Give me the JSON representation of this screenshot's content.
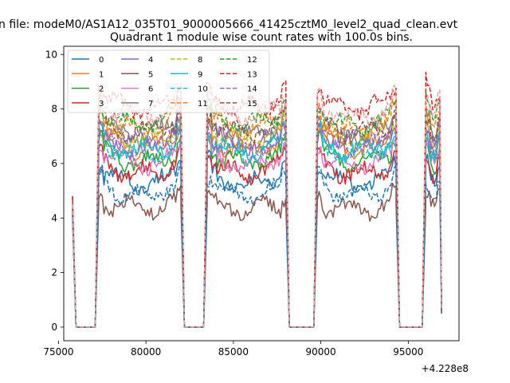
{
  "figure": {
    "suptitle": "n file: modeM0/AS1A12_035T01_9000005666_41425cztM0_level2_quad_clean.evt",
    "title": "Quadrant 1 module wise count rates with 100.0s bins.",
    "x_offset_label": "+4.228e8"
  },
  "chart_data": {
    "type": "line",
    "title": "Quadrant 1 module wise count rates with 100.0s bins.",
    "xlabel": "",
    "ylabel": "",
    "x_offset": 422800000,
    "xlim": [
      75300,
      97900
    ],
    "ylim": [
      -0.5,
      10.3
    ],
    "xticks": [
      75000,
      80000,
      85000,
      90000,
      95000
    ],
    "xtick_labels": [
      "75000",
      "80000",
      "85000",
      "90000",
      "95000"
    ],
    "yticks": [
      0,
      2,
      4,
      6,
      8,
      10
    ],
    "ytick_labels": [
      "0",
      "2",
      "4",
      "6",
      "8",
      "10"
    ],
    "bin_seconds": 100,
    "grid": false,
    "legend_location": "top-left",
    "legend_columns": 4,
    "segments": [
      {
        "start": 75800,
        "end": 76000,
        "kind": "drop"
      },
      {
        "start": 76000,
        "end": 77100,
        "kind": "zero"
      },
      {
        "start": 77100,
        "end": 77300,
        "kind": "rise"
      },
      {
        "start": 77300,
        "end": 82000,
        "kind": "plateau"
      },
      {
        "start": 82000,
        "end": 82200,
        "kind": "drop"
      },
      {
        "start": 82200,
        "end": 83300,
        "kind": "zero"
      },
      {
        "start": 83300,
        "end": 83500,
        "kind": "rise"
      },
      {
        "start": 83500,
        "end": 88000,
        "kind": "plateau"
      },
      {
        "start": 88000,
        "end": 88200,
        "kind": "drop"
      },
      {
        "start": 88200,
        "end": 89600,
        "kind": "zero"
      },
      {
        "start": 89600,
        "end": 89800,
        "kind": "rise"
      },
      {
        "start": 89800,
        "end": 94300,
        "kind": "plateau"
      },
      {
        "start": 94300,
        "end": 94500,
        "kind": "drop"
      },
      {
        "start": 94500,
        "end": 95800,
        "kind": "zero"
      },
      {
        "start": 95800,
        "end": 96000,
        "kind": "rise"
      },
      {
        "start": 96000,
        "end": 96900,
        "kind": "plateau"
      }
    ],
    "series": [
      {
        "name": "0",
        "color": "#1f77b4",
        "dash": "solid",
        "level": 5.7,
        "start_value": 4.2,
        "end_value": 0.6
      },
      {
        "name": "1",
        "color": "#ff7f0e",
        "dash": "solid",
        "level": 7.0,
        "start_value": 4.3,
        "end_value": 0.5
      },
      {
        "name": "2",
        "color": "#2ca02c",
        "dash": "solid",
        "level": 6.5,
        "start_value": 4.1,
        "end_value": 0.6
      },
      {
        "name": "3",
        "color": "#d62728",
        "dash": "solid",
        "level": 6.1,
        "start_value": 4.8,
        "end_value": 0.7
      },
      {
        "name": "4",
        "color": "#9467bd",
        "dash": "solid",
        "level": 7.2,
        "start_value": 4.4,
        "end_value": 0.6
      },
      {
        "name": "5",
        "color": "#8c564b",
        "dash": "solid",
        "level": 4.5,
        "start_value": 4.0,
        "end_value": 0.5
      },
      {
        "name": "6",
        "color": "#e377c2",
        "dash": "solid",
        "level": 6.4,
        "start_value": 4.2,
        "end_value": 0.6
      },
      {
        "name": "7",
        "color": "#7f7f7f",
        "dash": "solid",
        "level": 7.5,
        "start_value": 4.3,
        "end_value": 0.8
      },
      {
        "name": "8",
        "color": "#bcbd22",
        "dash": "dashed",
        "level": 7.3,
        "start_value": 4.2,
        "end_value": 0.6
      },
      {
        "name": "9",
        "color": "#17becf",
        "dash": "solid",
        "level": 6.9,
        "start_value": 4.1,
        "end_value": 0.7
      },
      {
        "name": "10",
        "color": "#17becf",
        "dash": "dashed",
        "level": 6.8,
        "start_value": 4.2,
        "end_value": 0.6
      },
      {
        "name": "11",
        "color": "#ff7f0e",
        "dash": "dashed",
        "level": 7.7,
        "start_value": 4.3,
        "end_value": 0.5
      },
      {
        "name": "12",
        "color": "#2ca02c",
        "dash": "dashed",
        "level": 7.9,
        "start_value": 4.4,
        "end_value": 0.6
      },
      {
        "name": "13",
        "color": "#d62728",
        "dash": "dashed",
        "level": 8.5,
        "start_value": 4.8,
        "end_value": 0.7
      },
      {
        "name": "14",
        "color": "#9467bd",
        "dash": "dashed",
        "level": 7.0,
        "start_value": 4.2,
        "end_value": 0.6
      },
      {
        "name": "15",
        "color": "#8c564b",
        "dash": "dashed",
        "level": 7.6,
        "start_value": 4.3,
        "end_value": 0.5
      },
      {
        "name": "",
        "color": "#1f77b4",
        "dash": "dashed",
        "level": 5.3,
        "start_value": 4.1,
        "end_value": 0.6
      },
      {
        "name": "",
        "color": "#f0a0a0",
        "dash": "dashed",
        "level": 8.2,
        "start_value": 4.5,
        "end_value": 0.7
      }
    ]
  }
}
